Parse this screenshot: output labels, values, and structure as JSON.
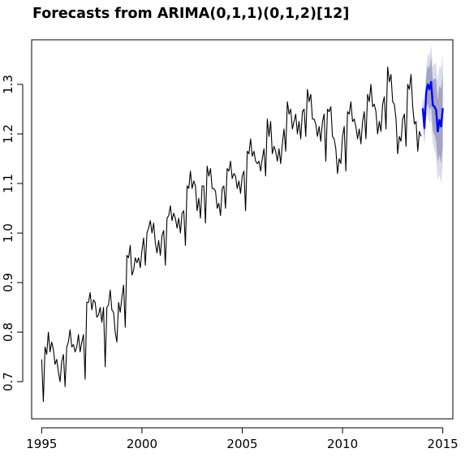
{
  "chart_data": {
    "type": "line",
    "title": "Forecasts from ARIMA(0,1,1)(0,1,2)[12]",
    "xlabel": "",
    "ylabel": "",
    "xlim": [
      1994.5,
      2015.5
    ],
    "ylim": [
      0.625,
      1.39
    ],
    "grid": false,
    "legend": "none",
    "x_ticks": [
      1995,
      2000,
      2005,
      2010,
      2015
    ],
    "x_tick_labels": [
      "1995",
      "2000",
      "2005",
      "2010",
      "2015"
    ],
    "y_ticks": [
      0.7,
      0.8,
      0.9,
      1.0,
      1.1,
      1.2,
      1.3
    ],
    "y_tick_labels": [
      "0.7",
      "0.8",
      "0.9",
      "1.0",
      "1.1",
      "1.2",
      "1.3"
    ],
    "colors": {
      "observed": "#000000",
      "forecast": "#0000ff",
      "interval_80": "#a3a3c7",
      "interval_95": "#dcdce9"
    },
    "series": [
      {
        "role": "observed",
        "start": 1995.0,
        "frequency": 12,
        "values": [
          0.745,
          0.66,
          0.77,
          0.755,
          0.8,
          0.76,
          0.78,
          0.765,
          0.735,
          0.745,
          0.72,
          0.7,
          0.74,
          0.755,
          0.69,
          0.77,
          0.78,
          0.805,
          0.77,
          0.775,
          0.76,
          0.77,
          0.795,
          0.76,
          0.78,
          0.795,
          0.705,
          0.86,
          0.86,
          0.88,
          0.845,
          0.865,
          0.86,
          0.83,
          0.835,
          0.85,
          0.82,
          0.85,
          0.73,
          0.85,
          0.855,
          0.885,
          0.845,
          0.84,
          0.8,
          0.78,
          0.86,
          0.84,
          0.87,
          0.895,
          0.81,
          0.955,
          0.95,
          0.975,
          0.915,
          0.925,
          0.95,
          0.94,
          0.95,
          0.93,
          0.965,
          0.99,
          0.935,
          1.0,
          1.01,
          1.025,
          1.0,
          1.02,
          0.98,
          0.96,
          0.985,
          0.955,
          0.995,
          1.005,
          0.935,
          1.03,
          1.035,
          1.055,
          1.025,
          1.04,
          1.03,
          1.01,
          1.03,
          1.0,
          1.04,
          1.045,
          0.975,
          1.095,
          1.09,
          1.125,
          1.09,
          1.105,
          1.095,
          1.045,
          1.07,
          1.03,
          1.095,
          1.095,
          1.02,
          1.135,
          1.115,
          1.13,
          1.09,
          1.09,
          1.085,
          1.05,
          1.06,
          1.035,
          1.09,
          1.095,
          1.05,
          1.13,
          1.125,
          1.145,
          1.11,
          1.12,
          1.115,
          1.09,
          1.105,
          1.08,
          1.115,
          1.125,
          1.045,
          1.165,
          1.16,
          1.19,
          1.155,
          1.165,
          1.145,
          1.14,
          1.145,
          1.125,
          1.15,
          1.17,
          1.115,
          1.23,
          1.195,
          1.225,
          1.16,
          1.175,
          1.165,
          1.145,
          1.17,
          1.14,
          1.18,
          1.21,
          1.165,
          1.265,
          1.24,
          1.25,
          1.21,
          1.225,
          1.24,
          1.2,
          1.225,
          1.19,
          1.245,
          1.25,
          1.195,
          1.29,
          1.265,
          1.28,
          1.23,
          1.23,
          1.22,
          1.195,
          1.215,
          1.185,
          1.225,
          1.24,
          1.145,
          1.25,
          1.245,
          1.255,
          1.195,
          1.19,
          1.17,
          1.12,
          1.15,
          1.14,
          1.195,
          1.215,
          1.125,
          1.245,
          1.24,
          1.265,
          1.225,
          1.23,
          1.215,
          1.19,
          1.21,
          1.18,
          1.225,
          1.245,
          1.19,
          1.28,
          1.265,
          1.3,
          1.255,
          1.26,
          1.245,
          1.2,
          1.225,
          1.205,
          1.26,
          1.275,
          1.21,
          1.335,
          1.305,
          1.32,
          1.265,
          1.26,
          1.23,
          1.16,
          1.195,
          1.185,
          1.23,
          1.24,
          1.175,
          1.3,
          1.29,
          1.32,
          1.255,
          1.22,
          1.225,
          1.165,
          1.205,
          1.195
        ]
      },
      {
        "role": "forecast",
        "start": 2014.0,
        "frequency": 12,
        "values": [
          1.252,
          1.212,
          1.282,
          1.3,
          1.29,
          1.305,
          1.258,
          1.255,
          1.248,
          1.205,
          1.228,
          1.215,
          1.252
        ],
        "lower80": [
          1.232,
          1.19,
          1.25,
          1.262,
          1.248,
          1.255,
          1.208,
          1.198,
          1.185,
          1.142,
          1.158,
          1.14,
          1.178
        ],
        "upper80": [
          1.272,
          1.234,
          1.314,
          1.338,
          1.332,
          1.355,
          1.308,
          1.312,
          1.311,
          1.268,
          1.298,
          1.29,
          1.326
        ],
        "lower95": [
          1.222,
          1.175,
          1.232,
          1.24,
          1.222,
          1.228,
          1.18,
          1.168,
          1.152,
          1.105,
          1.118,
          1.098,
          1.138
        ],
        "upper95": [
          1.282,
          1.249,
          1.332,
          1.36,
          1.358,
          1.382,
          1.336,
          1.342,
          1.344,
          1.305,
          1.338,
          1.332,
          1.366
        ]
      }
    ]
  }
}
